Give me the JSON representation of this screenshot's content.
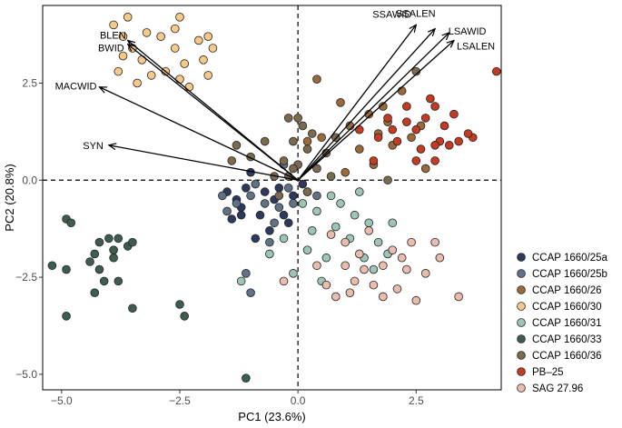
{
  "chart_data": {
    "type": "scatter",
    "xlabel": "PC1 (23.6%)",
    "ylabel": "PC2 (20.8%)",
    "xlim": [
      -5.4,
      4.3
    ],
    "ylim": [
      -5.4,
      4.5
    ],
    "xticks": [
      -5.0,
      -2.5,
      0.0,
      2.5
    ],
    "yticks": [
      -5.0,
      -2.5,
      0.0,
      2.5
    ],
    "xtick_labels": [
      "−5.0",
      "−2.5",
      "0.0",
      "2.5"
    ],
    "ytick_labels": [
      "−5.0",
      "−2.5",
      "0.0",
      "2.5"
    ],
    "reference_lines": {
      "x": 0,
      "y": 0,
      "style": "dashed"
    },
    "grid": false,
    "legend_position": "right",
    "series": [
      {
        "name": "CCAP 1660/25a",
        "color": "#2d3a5e",
        "points": [
          [
            -1.5,
            -0.3
          ],
          [
            -1.4,
            -1.0
          ],
          [
            -1.2,
            -0.7
          ],
          [
            -1.1,
            -0.2
          ],
          [
            -0.9,
            -1.5
          ],
          [
            -0.7,
            -0.3
          ],
          [
            -0.5,
            -0.5
          ],
          [
            -0.3,
            -0.9
          ],
          [
            -0.1,
            -0.4
          ],
          [
            0.1,
            -0.1
          ],
          [
            -1.2,
            -0.9
          ],
          [
            -0.8,
            -0.9
          ],
          [
            -1.0,
            0.2
          ],
          [
            -0.2,
            -1.1
          ],
          [
            -0.4,
            -0.2
          ],
          [
            -0.6,
            -1.3
          ],
          [
            -1.3,
            -0.5
          ]
        ]
      },
      {
        "name": "CCAP 1660/25b",
        "color": "#5f7286",
        "points": [
          [
            -1.6,
            -0.4
          ],
          [
            -1.3,
            -0.6
          ],
          [
            -1.0,
            -0.4
          ],
          [
            -0.7,
            -0.6
          ],
          [
            -0.4,
            -0.7
          ],
          [
            -0.1,
            -0.6
          ],
          [
            0.2,
            -0.3
          ],
          [
            -0.6,
            -1.6
          ],
          [
            -0.9,
            -0.1
          ],
          [
            -1.1,
            -2.4
          ],
          [
            -1.0,
            -2.9
          ],
          [
            -0.5,
            -1.1
          ],
          [
            -0.3,
            0.4
          ],
          [
            0.4,
            -0.4
          ],
          [
            -1.5,
            -0.8
          ],
          [
            -0.2,
            -0.2
          ]
        ]
      },
      {
        "name": "CCAP 1660/26",
        "color": "#9b6a3a",
        "points": [
          [
            0.4,
            2.6
          ],
          [
            0.9,
            2.0
          ],
          [
            1.1,
            1.4
          ],
          [
            1.3,
            0.8
          ],
          [
            1.7,
            1.2
          ],
          [
            2.0,
            0.9
          ],
          [
            2.4,
            1.1
          ],
          [
            1.5,
            1.7
          ],
          [
            0.5,
            1.1
          ],
          [
            2.2,
            2.3
          ],
          [
            1.8,
            1.9
          ],
          [
            2.6,
            1.4
          ],
          [
            1.0,
            0.2
          ],
          [
            1.6,
            0.4
          ],
          [
            2.7,
            0.3
          ],
          [
            0.2,
            1.0
          ],
          [
            1.9,
            1.5
          ]
        ]
      },
      {
        "name": "CCAP 1660/30",
        "color": "#f6c98a",
        "points": [
          [
            -3.6,
            4.2
          ],
          [
            -3.7,
            3.7
          ],
          [
            -3.9,
            4.0
          ],
          [
            -3.5,
            3.4
          ],
          [
            -3.3,
            3.1
          ],
          [
            -3.2,
            3.8
          ],
          [
            -2.9,
            3.7
          ],
          [
            -2.6,
            3.4
          ],
          [
            -2.6,
            3.9
          ],
          [
            -2.5,
            4.2
          ],
          [
            -2.4,
            3.0
          ],
          [
            -2.1,
            3.6
          ],
          [
            -2.0,
            3.1
          ],
          [
            -1.9,
            2.7
          ],
          [
            -2.3,
            2.4
          ],
          [
            -3.8,
            2.8
          ],
          [
            -3.1,
            2.7
          ],
          [
            -2.5,
            2.6
          ],
          [
            -3.7,
            3.2
          ],
          [
            -1.8,
            3.4
          ],
          [
            -1.9,
            3.7
          ],
          [
            -3.4,
            2.5
          ],
          [
            -2.8,
            2.8
          ]
        ]
      },
      {
        "name": "CCAP 1660/31",
        "color": "#9ec4b3",
        "points": [
          [
            -0.6,
            -1.9
          ],
          [
            -0.3,
            -1.5
          ],
          [
            -0.1,
            -2.4
          ],
          [
            0.3,
            -1.3
          ],
          [
            0.6,
            -2.0
          ],
          [
            0.8,
            -1.2
          ],
          [
            1.1,
            -1.5
          ],
          [
            1.4,
            -2.0
          ],
          [
            1.7,
            -1.6
          ],
          [
            2.0,
            -1.1
          ],
          [
            0.4,
            -0.8
          ],
          [
            0.9,
            -0.6
          ],
          [
            1.3,
            -0.3
          ],
          [
            -1.2,
            -2.6
          ],
          [
            0.5,
            -2.6
          ],
          [
            1.6,
            -2.3
          ],
          [
            0.2,
            -1.8
          ],
          [
            0.7,
            -0.4
          ],
          [
            1.9,
            -1.9
          ],
          [
            0.1,
            -0.6
          ],
          [
            1.2,
            -0.9
          ],
          [
            1.5,
            -1.1
          ]
        ]
      },
      {
        "name": "CCAP 1660/33",
        "color": "#3d5e4e",
        "points": [
          [
            -5.2,
            -2.2
          ],
          [
            -4.9,
            -1.0
          ],
          [
            -4.8,
            -1.1
          ],
          [
            -4.9,
            -2.3
          ],
          [
            -4.4,
            -2.1
          ],
          [
            -4.3,
            -1.9
          ],
          [
            -4.2,
            -1.6
          ],
          [
            -4.2,
            -2.3
          ],
          [
            -4.1,
            -2.6
          ],
          [
            -4.0,
            -1.5
          ],
          [
            -3.9,
            -1.8
          ],
          [
            -3.8,
            -2.6
          ],
          [
            -3.8,
            -1.5
          ],
          [
            -3.6,
            -1.7
          ],
          [
            -3.5,
            -1.6
          ],
          [
            -4.3,
            -2.9
          ],
          [
            -3.5,
            -3.3
          ],
          [
            -2.5,
            -3.2
          ],
          [
            -2.4,
            -3.5
          ],
          [
            -1.1,
            -5.1
          ],
          [
            -4.9,
            -3.5
          ],
          [
            -3.9,
            -2.0
          ]
        ]
      },
      {
        "name": "CCAP 1660/36",
        "color": "#7b6a4d",
        "points": [
          [
            -0.1,
            1.0
          ],
          [
            -0.3,
            0.5
          ],
          [
            0.0,
            0.4
          ],
          [
            0.2,
            0.8
          ],
          [
            0.4,
            0.3
          ],
          [
            0.1,
            1.4
          ],
          [
            -0.2,
            1.6
          ],
          [
            0.3,
            1.2
          ],
          [
            0.6,
            0.7
          ],
          [
            -1.0,
            0.6
          ],
          [
            -1.3,
            0.9
          ],
          [
            -0.5,
            0.1
          ],
          [
            0.7,
            0.1
          ],
          [
            0.2,
            -0.3
          ],
          [
            -0.1,
            0.3
          ],
          [
            0.8,
            1.1
          ],
          [
            2.5,
            2.8
          ],
          [
            1.9,
            0.0
          ],
          [
            -0.4,
            -0.4
          ],
          [
            -0.2,
            0.1
          ],
          [
            0.0,
            1.6
          ],
          [
            -0.7,
            1.0
          ],
          [
            -1.4,
            0.5
          ]
        ]
      },
      {
        "name": "PB–25",
        "color": "#c23b22",
        "points": [
          [
            4.2,
            2.8
          ],
          [
            3.3,
            1.7
          ],
          [
            2.9,
            1.9
          ],
          [
            2.7,
            1.6
          ],
          [
            2.5,
            1.3
          ],
          [
            2.3,
            1.5
          ],
          [
            2.1,
            1.0
          ],
          [
            2.0,
            1.3
          ],
          [
            1.9,
            1.6
          ],
          [
            2.8,
            2.1
          ],
          [
            3.1,
            1.4
          ],
          [
            3.4,
            1.0
          ],
          [
            3.0,
            1.0
          ],
          [
            2.6,
            0.8
          ],
          [
            2.9,
            0.9
          ],
          [
            1.6,
            0.5
          ],
          [
            2.3,
            1.9
          ],
          [
            1.3,
            1.3
          ],
          [
            3.7,
            1.1
          ],
          [
            3.6,
            1.2
          ],
          [
            3.2,
            0.9
          ],
          [
            2.5,
            0.5
          ],
          [
            1.7,
            1.1
          ],
          [
            2.9,
            0.5
          ]
        ]
      },
      {
        "name": "SAG 27.96",
        "color": "#e8bcae",
        "points": [
          [
            3.4,
            -3.0
          ],
          [
            2.5,
            -3.1
          ],
          [
            2.1,
            -2.8
          ],
          [
            1.8,
            -3.0
          ],
          [
            1.6,
            -2.7
          ],
          [
            1.4,
            -2.3
          ],
          [
            1.2,
            -2.6
          ],
          [
            1.0,
            -2.2
          ],
          [
            0.8,
            -3.0
          ],
          [
            0.6,
            -2.7
          ],
          [
            2.0,
            -1.8
          ],
          [
            2.3,
            -2.3
          ],
          [
            2.7,
            -2.4
          ],
          [
            3.0,
            -2.0
          ],
          [
            1.3,
            -1.9
          ],
          [
            2.9,
            -1.6
          ],
          [
            0.4,
            -2.2
          ],
          [
            1.0,
            -1.6
          ],
          [
            1.8,
            -2.2
          ],
          [
            1.1,
            -2.9
          ],
          [
            2.2,
            -2.0
          ],
          [
            2.4,
            -1.6
          ],
          [
            1.5,
            -1.3
          ],
          [
            0.7,
            -1.4
          ],
          [
            -0.3,
            -2.6
          ]
        ]
      }
    ],
    "loadings": [
      {
        "label": "SSAWID",
        "x": 2.5,
        "y": 4.0
      },
      {
        "label": "SSALEN",
        "x": 2.9,
        "y": 3.9
      },
      {
        "label": "LSAWID",
        "x": 3.2,
        "y": 3.8
      },
      {
        "label": "LSALEN",
        "x": 3.3,
        "y": 3.6
      },
      {
        "label": "BLEN",
        "x": -3.6,
        "y": 3.6
      },
      {
        "label": "BWID",
        "x": -3.6,
        "y": 3.5
      },
      {
        "label": "MACWID",
        "x": -4.2,
        "y": 2.4
      },
      {
        "label": "SYN",
        "x": -4.0,
        "y": 0.9
      }
    ]
  }
}
